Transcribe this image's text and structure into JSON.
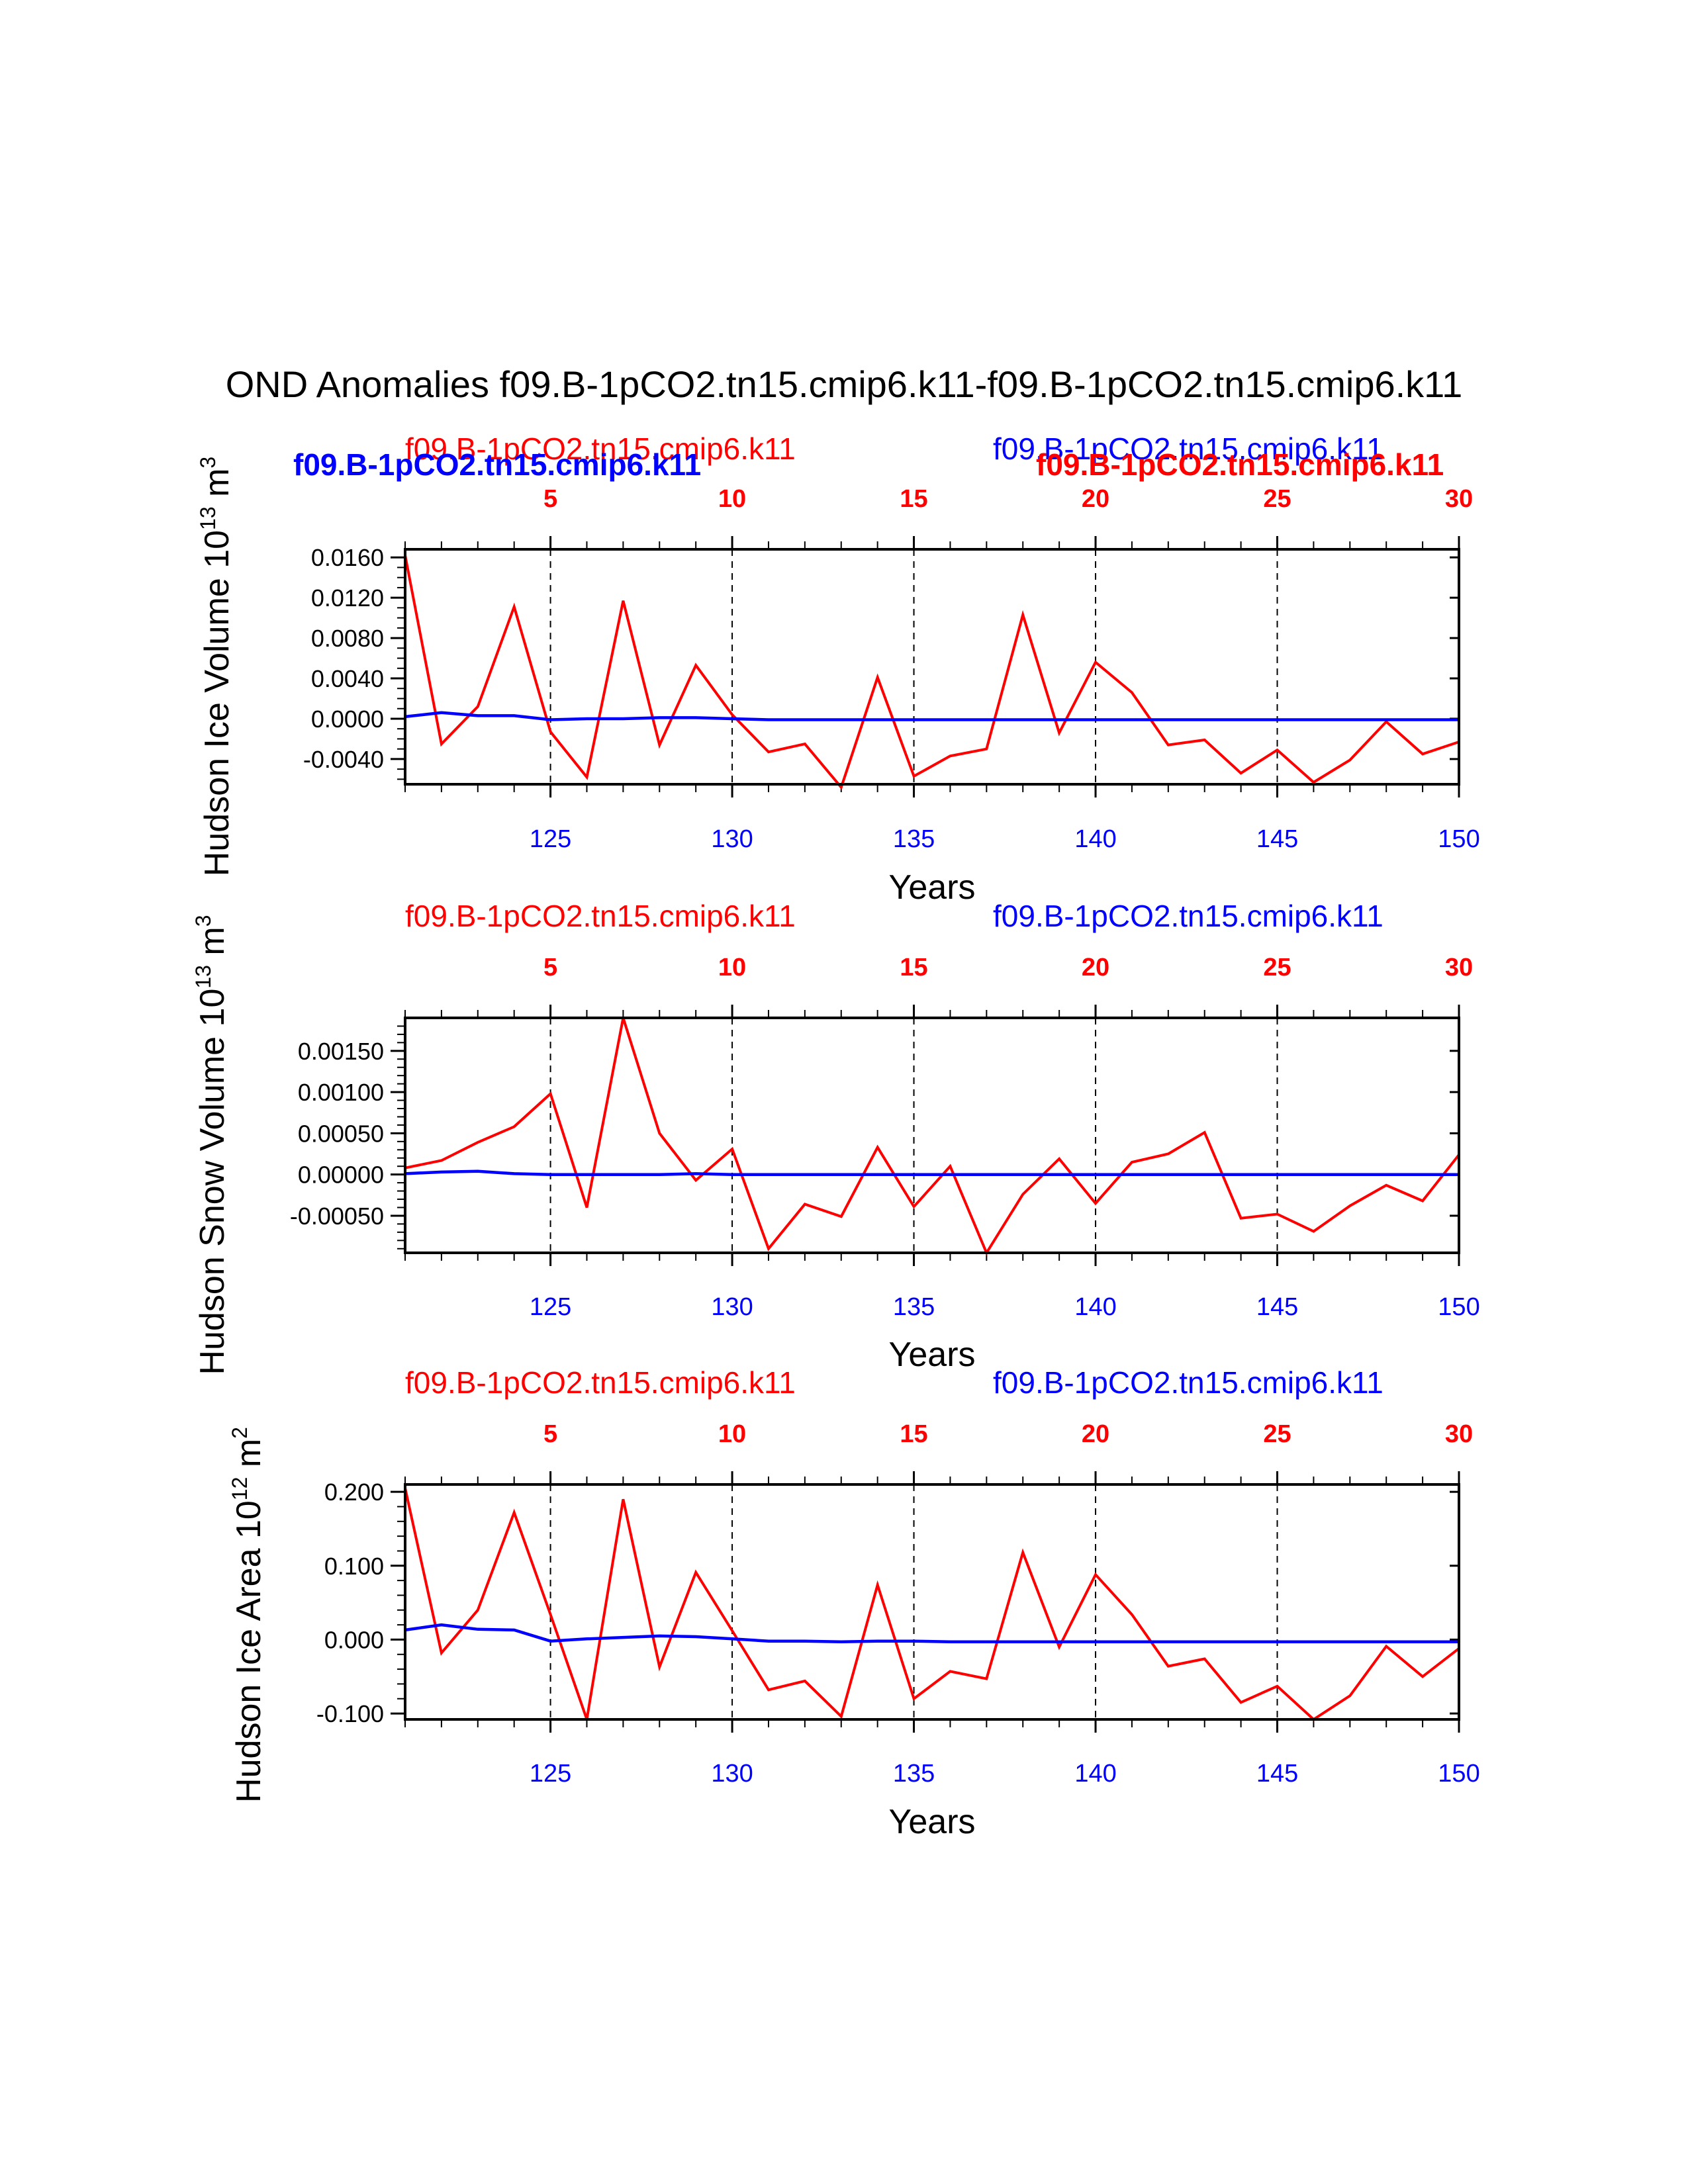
{
  "title": "OND Anomalies f09.B-1pCO2.tn15.cmip6.k11-f09.B-1pCO2.tn15.cmip6.k11",
  "colors": {
    "case1": "#ff0000",
    "case2": "#0000ff",
    "axis": "#000000"
  },
  "overlay_labels": {
    "left_bold": "f09.B-1pCO2.tn15.cmip6.k11",
    "right_bold": "f09.B-1pCO2.tn15.cmip6.k11"
  },
  "chart_data": [
    {
      "type": "line",
      "ylabel": "Hudson Ice Volume 10",
      "ylabel_exp": "13",
      "ylabel_unit": "m",
      "ylabel_unit_exp": "3",
      "xlabel": "Years",
      "left_title": "f09.B-1pCO2.tn15.cmip6.k11",
      "right_title": "f09.B-1pCO2.tn15.cmip6.k11",
      "xlim": [
        121,
        150
      ],
      "ylim": [
        -0.0065,
        0.0168
      ],
      "yticks": [
        -0.004,
        0.0,
        0.004,
        0.008,
        0.012,
        0.016
      ],
      "ytick_labels": [
        "-0.0040",
        "0.0000",
        "0.0040",
        "0.0080",
        "0.0120",
        "0.0160"
      ],
      "yminor": [
        -0.006,
        -0.005,
        -0.003,
        -0.002,
        -0.001,
        0.001,
        0.002,
        0.003,
        0.005,
        0.006,
        0.007,
        0.009,
        0.01,
        0.011,
        0.013,
        0.014,
        0.015
      ],
      "bottom_ticks": [
        125,
        130,
        135,
        140,
        145,
        150
      ],
      "bottom_tick_labels": [
        "125",
        "130",
        "135",
        "140",
        "145",
        "150"
      ],
      "top_ticks": [
        5,
        10,
        15,
        20,
        25,
        30
      ],
      "top_tick_labels": [
        "5",
        "10",
        "15",
        "20",
        "25",
        "30"
      ],
      "x": [
        121,
        122,
        123,
        124,
        125,
        126,
        127,
        128,
        129,
        130,
        131,
        132,
        133,
        134,
        135,
        136,
        137,
        138,
        139,
        140,
        141,
        142,
        143,
        144,
        145,
        146,
        147,
        148,
        149,
        150
      ],
      "series": [
        {
          "name": "f09.B-1pCO2.tn15.cmip6.k11",
          "color": "#ff0000",
          "values": [
            0.0162,
            -0.0025,
            0.0012,
            0.0111,
            -0.0013,
            -0.0058,
            0.0117,
            -0.0026,
            0.0053,
            0.0004,
            -0.0033,
            -0.0025,
            -0.0068,
            0.0041,
            -0.0057,
            -0.0037,
            -0.003,
            0.0103,
            -0.0014,
            0.0056,
            0.0026,
            -0.0026,
            -0.0021,
            -0.0054,
            -0.0031,
            -0.0063,
            -0.0041,
            -0.0003,
            -0.0035,
            -0.0023
          ]
        },
        {
          "name": "f09.B-1pCO2.tn15.cmip6.k11",
          "color": "#0000ff",
          "values": [
            0.0002,
            0.0006,
            0.0003,
            0.0003,
            -0.0001,
            0.0,
            0.0,
            0.0001,
            0.0001,
            0.0,
            -0.0001,
            -0.0001,
            -0.0001,
            -0.0001,
            -0.0001,
            -0.0001,
            -0.0001,
            -0.0001,
            -0.0001,
            -0.0001,
            -0.0001,
            -0.0001,
            -0.0001,
            -0.0001,
            -0.0001,
            -0.0001,
            -0.0001,
            -0.0001,
            -0.0001,
            -0.0001
          ]
        }
      ]
    },
    {
      "type": "line",
      "ylabel": "Hudson Snow Volume 10",
      "ylabel_exp": "13",
      "ylabel_unit": "m",
      "ylabel_unit_exp": "3",
      "xlabel": "Years",
      "left_title": "f09.B-1pCO2.tn15.cmip6.k11",
      "right_title": "f09.B-1pCO2.tn15.cmip6.k11",
      "xlim": [
        121,
        150
      ],
      "ylim": [
        -0.00095,
        0.0019
      ],
      "yticks": [
        -0.0005,
        0.0,
        0.0005,
        0.001,
        0.0015
      ],
      "ytick_labels": [
        "-0.00050",
        "0.00000",
        "0.00050",
        "0.00100",
        "0.00150"
      ],
      "yminor": [
        -0.0009,
        -0.0008,
        -0.0007,
        -0.0006,
        -0.0004,
        -0.0003,
        -0.0002,
        -0.0001,
        0.0001,
        0.0002,
        0.0003,
        0.0004,
        0.0006,
        0.0007,
        0.0008,
        0.0009,
        0.0011,
        0.0012,
        0.0013,
        0.0014,
        0.0016,
        0.0017,
        0.0018
      ],
      "bottom_ticks": [
        125,
        130,
        135,
        140,
        145,
        150
      ],
      "bottom_tick_labels": [
        "125",
        "130",
        "135",
        "140",
        "145",
        "150"
      ],
      "top_ticks": [
        5,
        10,
        15,
        20,
        25,
        30
      ],
      "top_tick_labels": [
        "5",
        "10",
        "15",
        "20",
        "25",
        "30"
      ],
      "x": [
        121,
        122,
        123,
        124,
        125,
        126,
        127,
        128,
        129,
        130,
        131,
        132,
        133,
        134,
        135,
        136,
        137,
        138,
        139,
        140,
        141,
        142,
        143,
        144,
        145,
        146,
        147,
        148,
        149,
        150
      ],
      "series": [
        {
          "name": "f09.B-1pCO2.tn15.cmip6.k11",
          "color": "#ff0000",
          "values": [
            8e-05,
            0.00017,
            0.00039,
            0.00058,
            0.00098,
            -0.0004,
            0.0019,
            0.0005,
            -7e-05,
            0.00031,
            -0.0009,
            -0.00036,
            -0.00051,
            0.00033,
            -0.00039,
            0.0001,
            -0.00095,
            -0.00024,
            0.00019,
            -0.00035,
            0.00015,
            0.00025,
            0.00051,
            -0.00053,
            -0.00048,
            -0.00069,
            -0.00038,
            -0.00013,
            -0.00032,
            0.00024
          ]
        },
        {
          "name": "f09.B-1pCO2.tn15.cmip6.k11",
          "color": "#0000ff",
          "values": [
            1e-05,
            3e-05,
            4e-05,
            1e-05,
            0.0,
            0.0,
            0.0,
            0.0,
            1e-05,
            0.0,
            0.0,
            0.0,
            0.0,
            0.0,
            0.0,
            0.0,
            0.0,
            0.0,
            0.0,
            0.0,
            0.0,
            0.0,
            0.0,
            0.0,
            0.0,
            0.0,
            0.0,
            0.0,
            0.0,
            0.0
          ]
        }
      ]
    },
    {
      "type": "line",
      "ylabel": "Hudson Ice Area 10",
      "ylabel_exp": "12",
      "ylabel_unit": "m",
      "ylabel_unit_exp": "2",
      "xlabel": "Years",
      "left_title": "f09.B-1pCO2.tn15.cmip6.k11",
      "right_title": "f09.B-1pCO2.tn15.cmip6.k11",
      "xlim": [
        121,
        150
      ],
      "ylim": [
        -0.108,
        0.21
      ],
      "yticks": [
        -0.1,
        0.0,
        0.1,
        0.2
      ],
      "ytick_labels": [
        "-0.100",
        "0.000",
        "0.100",
        "0.200"
      ],
      "yminor": [
        -0.08,
        -0.06,
        -0.04,
        -0.02,
        0.02,
        0.04,
        0.06,
        0.08,
        0.12,
        0.14,
        0.16,
        0.18
      ],
      "bottom_ticks": [
        125,
        130,
        135,
        140,
        145,
        150
      ],
      "bottom_tick_labels": [
        "125",
        "130",
        "135",
        "140",
        "145",
        "150"
      ],
      "top_ticks": [
        5,
        10,
        15,
        20,
        25,
        30
      ],
      "top_tick_labels": [
        "5",
        "10",
        "15",
        "20",
        "25",
        "30"
      ],
      "x": [
        121,
        122,
        123,
        124,
        125,
        126,
        127,
        128,
        129,
        130,
        131,
        132,
        133,
        134,
        135,
        136,
        137,
        138,
        139,
        140,
        141,
        142,
        143,
        144,
        145,
        146,
        147,
        148,
        149,
        150
      ],
      "series": [
        {
          "name": "f09.B-1pCO2.tn15.cmip6.k11",
          "color": "#ff0000",
          "values": [
            0.205,
            -0.018,
            0.04,
            0.172,
            0.034,
            -0.108,
            0.19,
            -0.037,
            0.091,
            0.012,
            -0.068,
            -0.056,
            -0.104,
            0.074,
            -0.08,
            -0.043,
            -0.053,
            0.118,
            -0.01,
            0.088,
            0.034,
            -0.036,
            -0.026,
            -0.085,
            -0.063,
            -0.108,
            -0.076,
            -0.009,
            -0.05,
            -0.012
          ]
        },
        {
          "name": "f09.B-1pCO2.tn15.cmip6.k11",
          "color": "#0000ff",
          "values": [
            0.013,
            0.02,
            0.014,
            0.013,
            -0.002,
            0.001,
            0.003,
            0.005,
            0.004,
            0.001,
            -0.002,
            -0.002,
            -0.003,
            -0.002,
            -0.002,
            -0.003,
            -0.003,
            -0.003,
            -0.003,
            -0.003,
            -0.003,
            -0.003,
            -0.003,
            -0.003,
            -0.003,
            -0.003,
            -0.003,
            -0.003,
            -0.003,
            -0.003
          ]
        }
      ]
    }
  ]
}
